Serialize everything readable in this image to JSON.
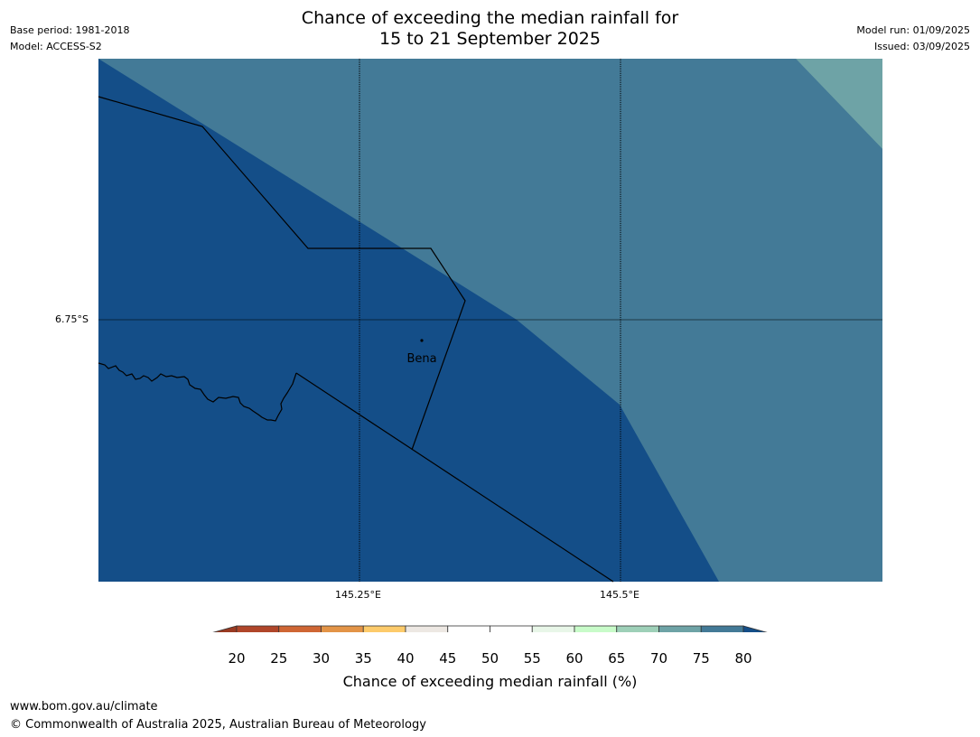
{
  "header": {
    "title_line1": "Chance of exceeding the median rainfall for",
    "title_line2": "15 to 21 September 2025",
    "base_period": "Base period: 1981-2018",
    "model": "Model: ACCESS-S2",
    "model_run": "Model run: 01/09/2025",
    "issued": "Issued: 03/09/2025"
  },
  "map": {
    "lat_label": "6.75°S",
    "lon_labels": [
      "145.25°E",
      "145.5°E"
    ],
    "place": "Bena",
    "colors": {
      "band_80plus": "#144e88",
      "band_75_80": "#437a97",
      "band_70_75": "#6ea3a6"
    }
  },
  "colorbar": {
    "ticks": [
      "20",
      "25",
      "30",
      "35",
      "40",
      "45",
      "50",
      "55",
      "60",
      "65",
      "70",
      "75",
      "80"
    ],
    "under_color": "#9a3a22",
    "over_color": "#144e88",
    "colors": [
      "#b0462a",
      "#cf6634",
      "#e39447",
      "#fdcb6b",
      "#ede8e3",
      "#ffffff",
      "#ffffff",
      "#e8f6e8",
      "#c8fbc9",
      "#9ed0b8",
      "#6ea3a6",
      "#437a97"
    ],
    "label": "Chance of exceeding median rainfall (%)"
  },
  "footer": {
    "url": "www.bom.gov.au/climate",
    "copyright": "© Commonwealth of Australia 2025, Australian Bureau of Meteorology"
  }
}
